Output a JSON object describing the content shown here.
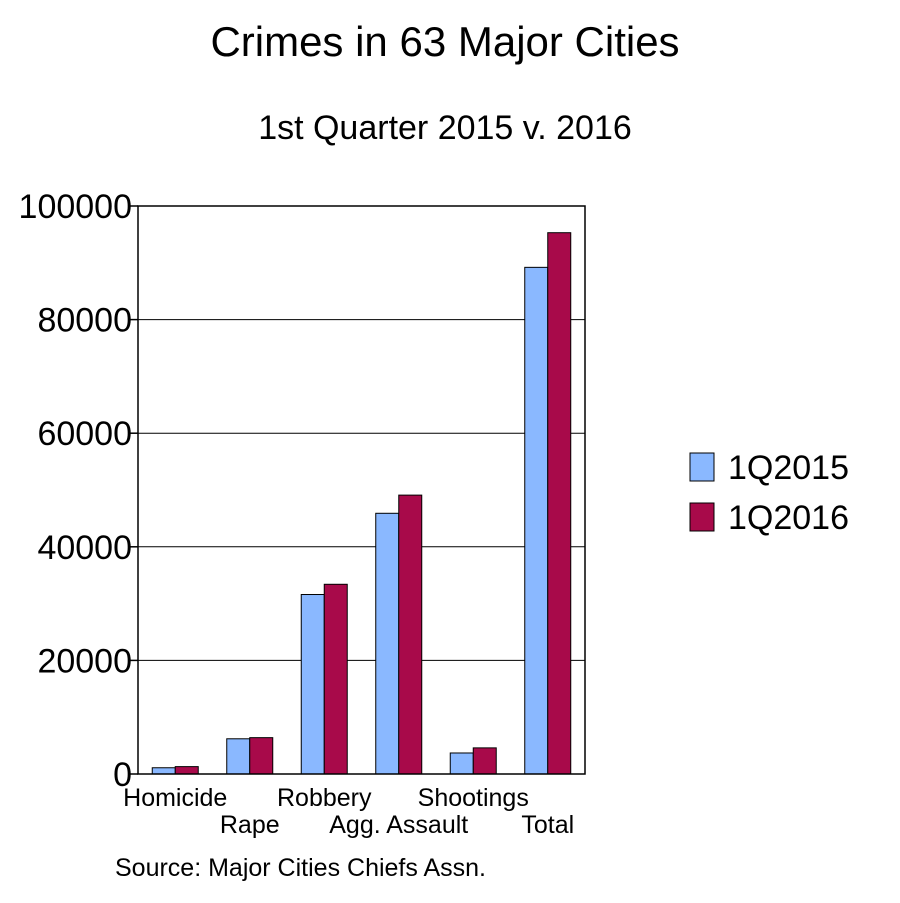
{
  "chart_data": {
    "type": "bar",
    "title": "Crimes in 63 Major Cities",
    "subtitle": "1st Quarter 2015 v. 2016",
    "xlabel": "",
    "ylabel": "",
    "ylim": [
      0,
      100000
    ],
    "yticks": [
      "0",
      "20000",
      "40000",
      "60000",
      "80000",
      "100000"
    ],
    "categories": [
      "Homicide",
      "Rape",
      "Robbery",
      "Agg. Assault",
      "Shootings",
      "Total"
    ],
    "series": [
      {
        "name": "1Q2015",
        "color": "#8ab8ff",
        "values": [
          1100,
          6200,
          31600,
          45900,
          3700,
          89200
        ]
      },
      {
        "name": "1Q2016",
        "color": "#a80a4a",
        "values": [
          1300,
          6400,
          33400,
          49100,
          4600,
          95300
        ]
      }
    ],
    "grid": true,
    "legend": "right",
    "source": "Source: Major Cities Chiefs Assn."
  }
}
